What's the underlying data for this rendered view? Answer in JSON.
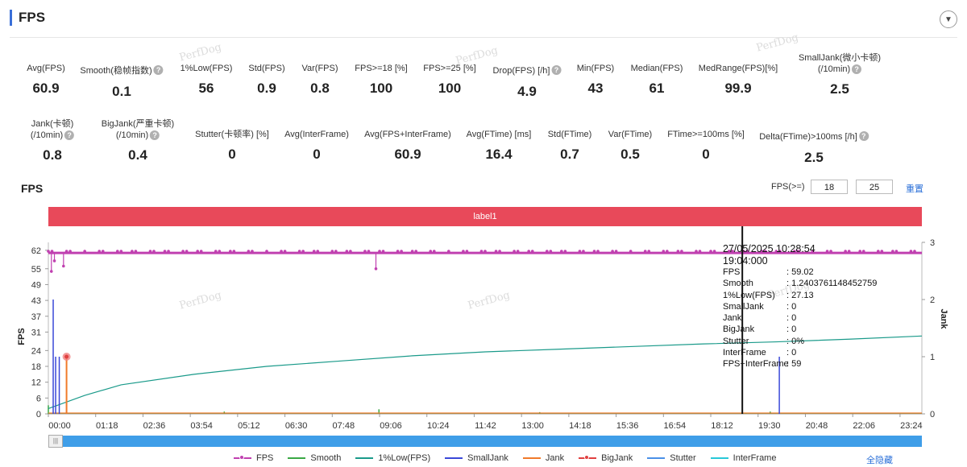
{
  "header": {
    "title": "FPS",
    "collapse_icon": "chevron-down-icon"
  },
  "metrics_row1": [
    {
      "label": "Avg(FPS)",
      "value": "60.9",
      "help": false
    },
    {
      "label": "Smooth(稳帧指数)",
      "value": "0.1",
      "help": true
    },
    {
      "label": "1%Low(FPS)",
      "value": "56",
      "help": false
    },
    {
      "label": "Std(FPS)",
      "value": "0.9",
      "help": false
    },
    {
      "label": "Var(FPS)",
      "value": "0.8",
      "help": false
    },
    {
      "label": "FPS>=18 [%]",
      "value": "100",
      "help": false
    },
    {
      "label": "FPS>=25 [%]",
      "value": "100",
      "help": false
    },
    {
      "label": "Drop(FPS) [/h]",
      "value": "4.9",
      "help": true
    },
    {
      "label": "Min(FPS)",
      "value": "43",
      "help": false
    },
    {
      "label": "Median(FPS)",
      "value": "61",
      "help": false
    },
    {
      "label": "MedRange(FPS)[%]",
      "value": "99.9",
      "help": false
    },
    {
      "label": "SmallJank(微小卡顿)",
      "label2": "(/10min)",
      "value": "2.5",
      "help": true
    }
  ],
  "metrics_row2": [
    {
      "label": "Jank(卡顿)",
      "label2": "(/10min)",
      "value": "0.8",
      "help": true
    },
    {
      "label": "BigJank(严重卡顿)",
      "label2": "(/10min)",
      "value": "0.4",
      "help": true
    },
    {
      "label": "Stutter(卡顿率) [%]",
      "value": "0",
      "help": false
    },
    {
      "label": "Avg(InterFrame)",
      "value": "0",
      "help": false
    },
    {
      "label": "Avg(FPS+InterFrame)",
      "value": "60.9",
      "help": false
    },
    {
      "label": "Avg(FTime) [ms]",
      "value": "16.4",
      "help": false
    },
    {
      "label": "Std(FTime)",
      "value": "0.7",
      "help": false
    },
    {
      "label": "Var(FTime)",
      "value": "0.5",
      "help": false
    },
    {
      "label": "FTime>=100ms [%]",
      "value": "0",
      "help": false
    },
    {
      "label": "Delta(FTime)>100ms [/h]",
      "value": "2.5",
      "help": true
    }
  ],
  "chart_section": {
    "title": "FPS",
    "threshold_label": "FPS(>=)",
    "threshold_1": "18",
    "threshold_2": "25",
    "reset_label": "重置",
    "band_label": "label1",
    "watermark": "PerfDog",
    "hide_all_label": "全隐藏"
  },
  "tooltip": {
    "date": "27/05/2025 10:28:54",
    "time": "19:04:000",
    "rows": [
      {
        "k": "FPS",
        "v": ": 59.02"
      },
      {
        "k": "Smooth",
        "v": ": 1.2403761148452759"
      },
      {
        "k": "1%Low(FPS)",
        "v": ": 27.13"
      },
      {
        "k": "SmallJank",
        "v": ": 0"
      },
      {
        "k": "Jank",
        "v": ": 0"
      },
      {
        "k": "BigJank",
        "v": ": 0"
      },
      {
        "k": "Stutter",
        "v": ": 0%"
      },
      {
        "k": "InterFrame",
        "v": ": 0"
      },
      {
        "k": "FPS+InterFrame",
        "v": ": 59"
      }
    ]
  },
  "legend": [
    {
      "name": "FPS",
      "color": "#c040b0",
      "dot": true
    },
    {
      "name": "Smooth",
      "color": "#3aa845",
      "dot": false
    },
    {
      "name": "1%Low(FPS)",
      "color": "#1a9a8a",
      "dot": false
    },
    {
      "name": "SmallJank",
      "color": "#3a48d8",
      "dot": false
    },
    {
      "name": "Jank",
      "color": "#f07a2a",
      "dot": false
    },
    {
      "name": "BigJank",
      "color": "#e04040",
      "dot": true
    },
    {
      "name": "Stutter",
      "color": "#4a90e8",
      "dot": false
    },
    {
      "name": "InterFrame",
      "color": "#28c8d8",
      "dot": false
    }
  ],
  "chart_data": {
    "type": "line",
    "y_left_label": "FPS",
    "y_right_label": "Jank",
    "y_left_ticks": [
      0,
      6,
      12,
      18,
      24,
      31,
      37,
      43,
      49,
      55,
      62
    ],
    "y_left_range": [
      0,
      65
    ],
    "y_right_ticks": [
      0,
      1,
      2,
      3
    ],
    "y_right_range": [
      0,
      3
    ],
    "x_ticks": [
      "00:00",
      "01:18",
      "02:36",
      "03:54",
      "05:12",
      "06:30",
      "07:48",
      "09:06",
      "10:24",
      "11:42",
      "13:00",
      "14:18",
      "15:36",
      "16:54",
      "18:12",
      "19:30",
      "20:48",
      "22:06",
      "23:24"
    ],
    "x_range_min": [
      0,
      1440
    ],
    "cursor_min": 1144,
    "series": [
      {
        "name": "FPS",
        "baseline": 61,
        "dips": [
          [
            5,
            54
          ],
          [
            10,
            58
          ],
          [
            25,
            56
          ],
          [
            540,
            55
          ]
        ]
      },
      {
        "name": "1%Low(FPS)",
        "points": [
          [
            0,
            2
          ],
          [
            60,
            7
          ],
          [
            120,
            11
          ],
          [
            240,
            15
          ],
          [
            360,
            18
          ],
          [
            480,
            20
          ],
          [
            600,
            22
          ],
          [
            720,
            23.5
          ],
          [
            840,
            24.5
          ],
          [
            960,
            25.5
          ],
          [
            1080,
            26.5
          ],
          [
            1200,
            27.3
          ],
          [
            1320,
            28.3
          ],
          [
            1440,
            29.5
          ]
        ]
      },
      {
        "name": "SmallJank",
        "spikes": [
          [
            8,
            2.0
          ],
          [
            12,
            1.0
          ],
          [
            18,
            1.0
          ],
          [
            1205,
            1.0
          ]
        ]
      },
      {
        "name": "Jank",
        "spikes": [
          [
            30,
            1.0
          ]
        ]
      },
      {
        "name": "BigJank",
        "points": [
          [
            30,
            1.0
          ]
        ]
      },
      {
        "name": "Smooth",
        "spikes": [
          [
            0,
            0.15
          ],
          [
            290,
            0.04
          ],
          [
            545,
            0.08
          ],
          [
            810,
            0.03
          ],
          [
            1150,
            0.02
          ],
          [
            1190,
            0.04
          ]
        ]
      }
    ]
  }
}
